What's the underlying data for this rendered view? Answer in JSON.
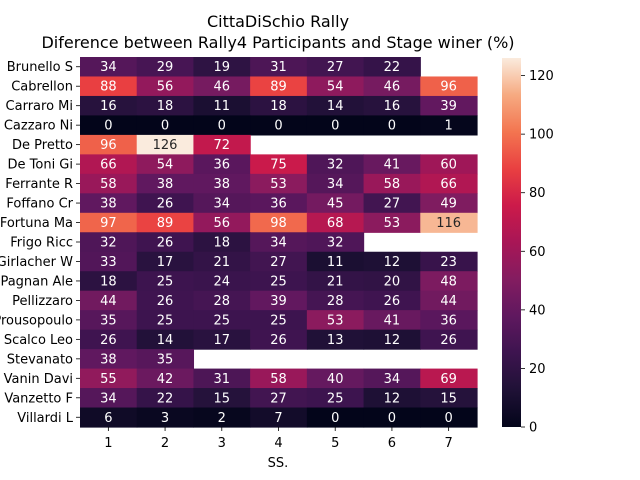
{
  "chart_data": {
    "type": "heatmap",
    "title": "CittaDiSchio Rally",
    "subtitle": "Diference between Rally4 Participants and Stage winer (%)",
    "xlabel": "SS.",
    "ylabel": "",
    "x": [
      "1",
      "2",
      "3",
      "4",
      "5",
      "6",
      "7"
    ],
    "y": [
      "Brunello S",
      "Cabrellon ",
      "Carraro Mi",
      "Cazzaro Ni",
      "De Pretto ",
      "De Toni Gi",
      "Ferrante R",
      "Foffano Cr",
      "Fortuna Ma",
      "Frigo Ricc",
      "Girlacher W",
      "Pagnan Ale",
      "Pellizzaro",
      "Prousopoulo",
      "Scalco Leo",
      "Stevanato ",
      "Vanin Davi",
      "Vanzetto F",
      "Villardi L"
    ],
    "values": [
      [
        34,
        29,
        19,
        31,
        27,
        22,
        null
      ],
      [
        88,
        56,
        46,
        89,
        54,
        46,
        96
      ],
      [
        16,
        18,
        11,
        18,
        14,
        16,
        39
      ],
      [
        0,
        0,
        0,
        0,
        0,
        0,
        1
      ],
      [
        96,
        126,
        72,
        null,
        null,
        null,
        null
      ],
      [
        66,
        54,
        36,
        75,
        32,
        41,
        60
      ],
      [
        58,
        38,
        38,
        53,
        34,
        58,
        66
      ],
      [
        38,
        26,
        34,
        36,
        45,
        27,
        49
      ],
      [
        97,
        89,
        56,
        98,
        68,
        53,
        116
      ],
      [
        32,
        26,
        18,
        34,
        32,
        null,
        null
      ],
      [
        33,
        17,
        21,
        27,
        11,
        12,
        23
      ],
      [
        18,
        25,
        24,
        25,
        21,
        20,
        48
      ],
      [
        44,
        26,
        28,
        39,
        28,
        26,
        44
      ],
      [
        35,
        25,
        25,
        25,
        53,
        41,
        36
      ],
      [
        26,
        14,
        17,
        26,
        13,
        12,
        26
      ],
      [
        38,
        35,
        null,
        null,
        null,
        null,
        null
      ],
      [
        55,
        42,
        31,
        58,
        40,
        34,
        69
      ],
      [
        34,
        22,
        15,
        27,
        25,
        12,
        15
      ],
      [
        6,
        3,
        2,
        7,
        0,
        0,
        0
      ]
    ],
    "colorbar": {
      "min": 0,
      "max": 126,
      "ticks": [
        0,
        20,
        40,
        60,
        80,
        100,
        120
      ]
    },
    "colormap": "rocket",
    "annotated": true,
    "grid": false,
    "legend": "none"
  }
}
